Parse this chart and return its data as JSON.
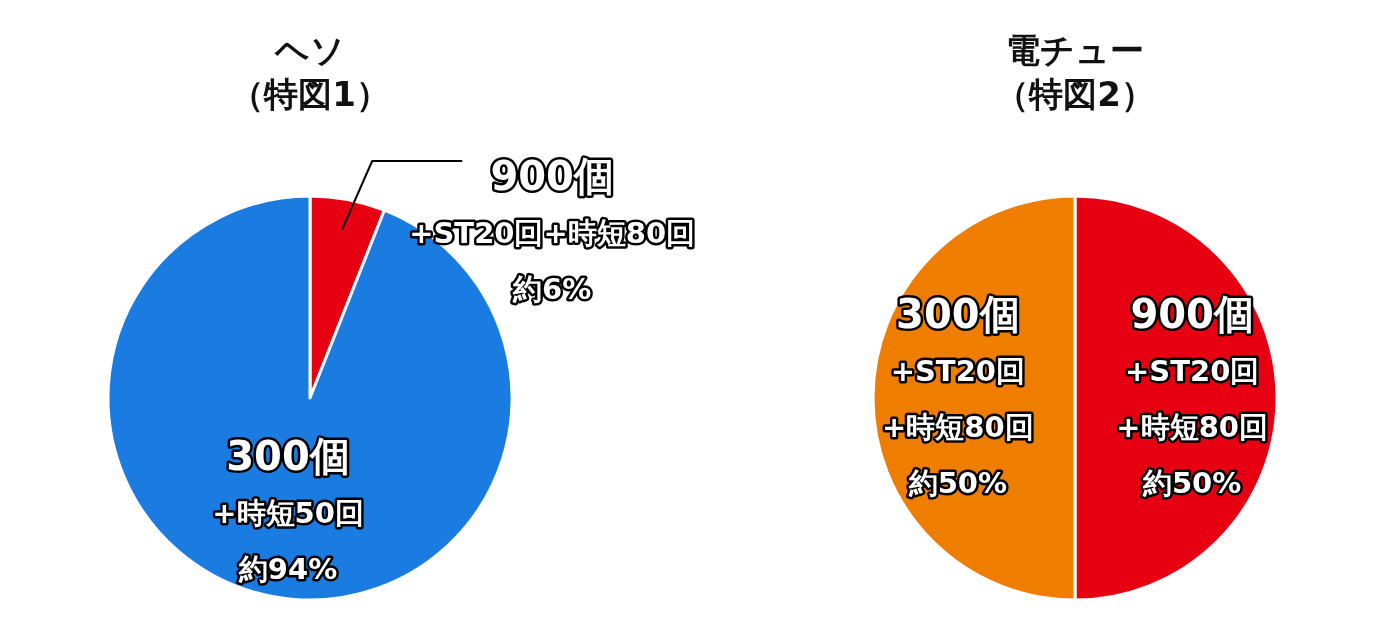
{
  "chart_data": [
    {
      "type": "pie",
      "title": "ヘソ",
      "subtitle": "（特図1）",
      "categories": [
        "900個\n+ST20回+時短80回",
        "300個\n+時短50回"
      ],
      "values": [
        6,
        94
      ],
      "colors": [
        "#e60012",
        "#1a7be0"
      ],
      "value_labels": [
        "約6%",
        "約94%"
      ],
      "legend": false
    },
    {
      "type": "pie",
      "title": "電チュー",
      "subtitle": "（特図2）",
      "categories": [
        "900個\n+ST20回\n+時短80回",
        "300個\n+ST20回\n+時短80回"
      ],
      "values": [
        50,
        50
      ],
      "colors": [
        "#e60012",
        "#ef7d00"
      ],
      "value_labels": [
        "約50%",
        "約50%"
      ],
      "legend": false
    }
  ]
}
